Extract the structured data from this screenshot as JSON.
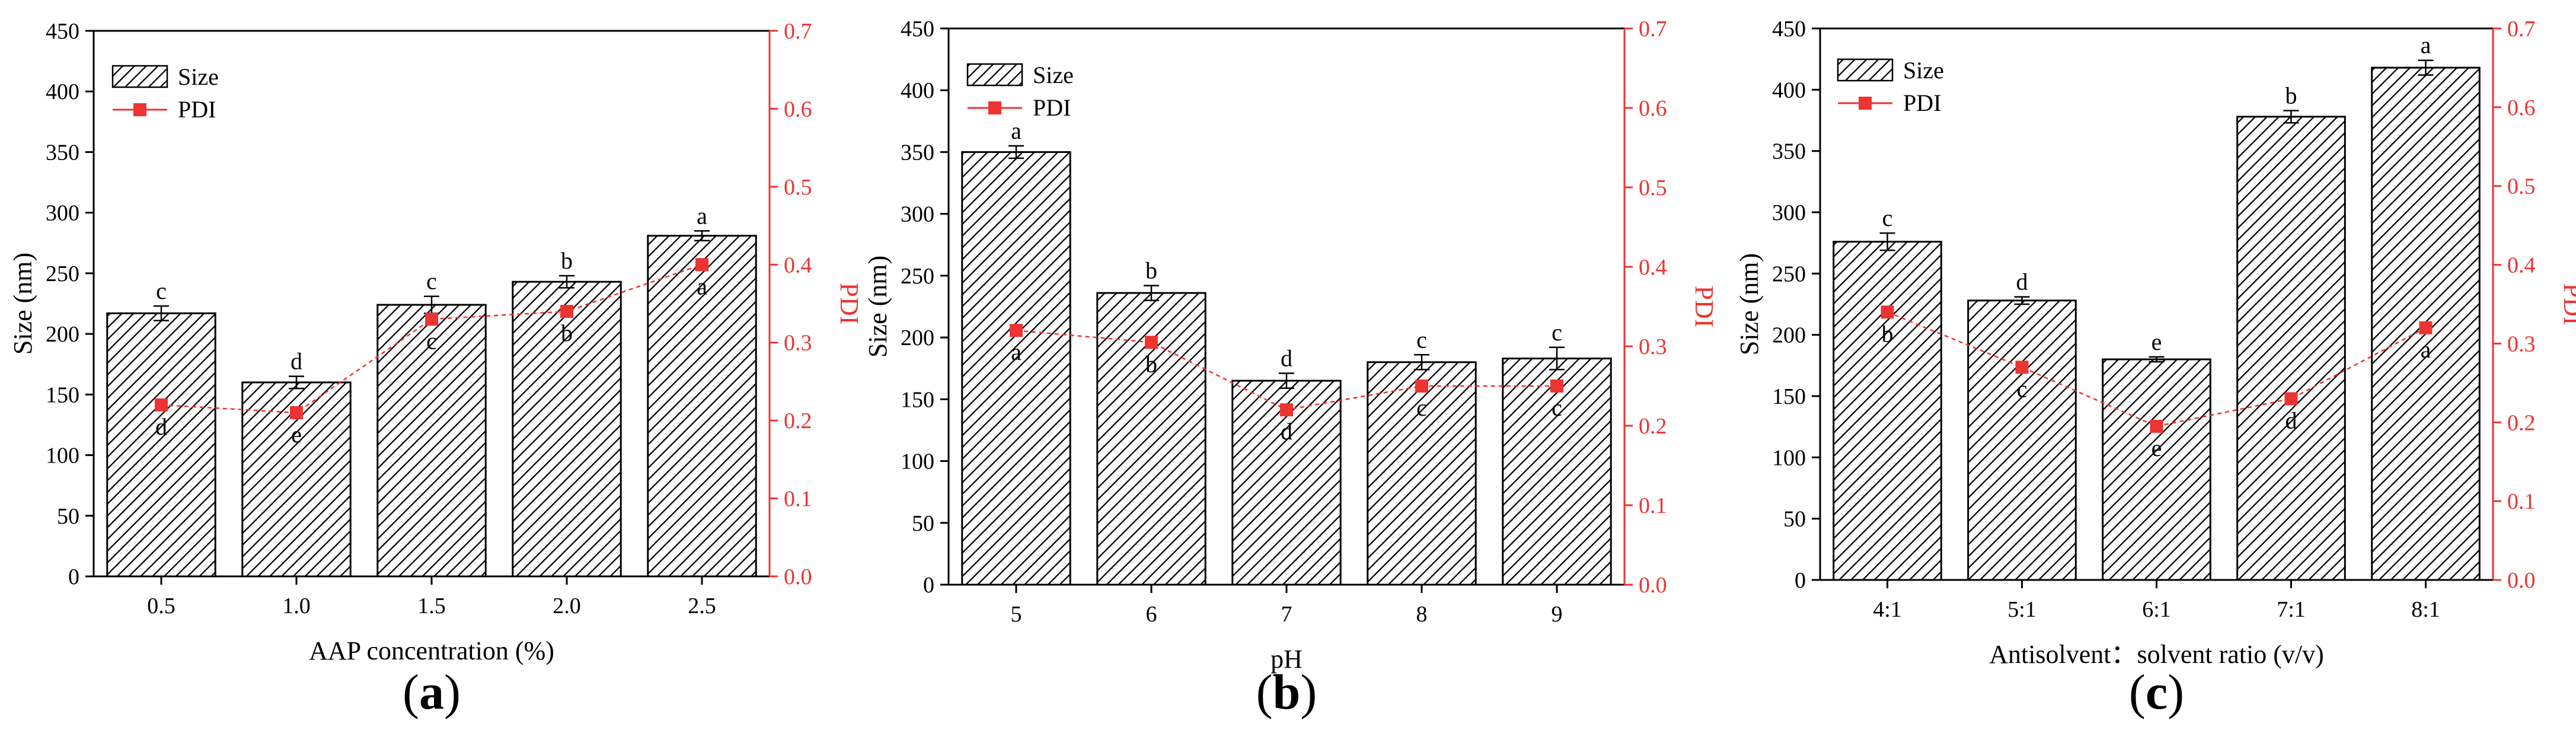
{
  "colors": {
    "axis": "#000000",
    "pdi": "#ee3333",
    "bar_fill": "#ffffff",
    "hatch": "#000000"
  },
  "chart_data": [
    {
      "type": "bar",
      "panel_label": "a",
      "xlabel": "AAP concentration (%)",
      "ylabel": "Size (nm)",
      "y2label": "PDI",
      "ylim": [
        0,
        450
      ],
      "y2lim": [
        0,
        0.7
      ],
      "yticks": [
        "0",
        "50",
        "100",
        "150",
        "200",
        "250",
        "300",
        "350",
        "400",
        "450"
      ],
      "y2ticks": [
        "0.0",
        "0.1",
        "0.2",
        "0.3",
        "0.4",
        "0.5",
        "0.6",
        "0.7"
      ],
      "categories": [
        "0.5",
        "1.0",
        "1.5",
        "2.0",
        "2.5"
      ],
      "legend": {
        "position": "top-left",
        "entries": [
          "Size",
          "PDI"
        ]
      },
      "series": [
        {
          "name": "Size",
          "kind": "bar",
          "values": [
            217,
            160,
            224,
            243,
            281
          ],
          "errors": [
            6,
            5,
            7,
            5,
            4
          ],
          "letters": [
            "c",
            "d",
            "c",
            "b",
            "a"
          ]
        },
        {
          "name": "PDI",
          "kind": "line",
          "values": [
            0.22,
            0.21,
            0.33,
            0.34,
            0.4
          ],
          "letters": [
            "d",
            "e",
            "c",
            "b",
            "a"
          ]
        }
      ]
    },
    {
      "type": "bar",
      "panel_label": "b",
      "xlabel": "pH",
      "ylabel": "Size (nm)",
      "y2label": "PDI",
      "ylim": [
        0,
        450
      ],
      "y2lim": [
        0,
        0.7
      ],
      "yticks": [
        "0",
        "50",
        "100",
        "150",
        "200",
        "250",
        "300",
        "350",
        "400",
        "450"
      ],
      "y2ticks": [
        "0.0",
        "0.1",
        "0.2",
        "0.3",
        "0.4",
        "0.5",
        "0.6",
        "0.7"
      ],
      "categories": [
        "5",
        "6",
        "7",
        "8",
        "9"
      ],
      "legend": {
        "position": "top-left",
        "entries": [
          "Size",
          "PDI"
        ]
      },
      "series": [
        {
          "name": "Size",
          "kind": "bar",
          "values": [
            350,
            236,
            165,
            180,
            183
          ],
          "errors": [
            5,
            6,
            6,
            6,
            9
          ],
          "letters": [
            "a",
            "b",
            "d",
            "c",
            "c"
          ]
        },
        {
          "name": "PDI",
          "kind": "line",
          "values": [
            0.32,
            0.305,
            0.22,
            0.25,
            0.25
          ],
          "letters": [
            "a",
            "b",
            "d",
            "c",
            "c"
          ]
        }
      ]
    },
    {
      "type": "bar",
      "panel_label": "c",
      "xlabel": "Antisolvent：solvent ratio (v/v)",
      "ylabel": "Size (nm)",
      "y2label": "PDI",
      "ylim": [
        0,
        450
      ],
      "y2lim": [
        0,
        0.7
      ],
      "yticks": [
        "0",
        "50",
        "100",
        "150",
        "200",
        "250",
        "300",
        "350",
        "400",
        "450"
      ],
      "y2ticks": [
        "0.0",
        "0.1",
        "0.2",
        "0.3",
        "0.4",
        "0.5",
        "0.6",
        "0.7"
      ],
      "categories": [
        "4:1",
        "5:1",
        "6:1",
        "7:1",
        "8:1"
      ],
      "legend": {
        "position": "top-left",
        "entries": [
          "Size",
          "PDI"
        ]
      },
      "series": [
        {
          "name": "Size",
          "kind": "bar",
          "values": [
            276,
            228,
            180,
            378,
            418
          ],
          "errors": [
            7,
            3,
            2,
            5,
            6
          ],
          "letters": [
            "c",
            "d",
            "e",
            "b",
            "a"
          ]
        },
        {
          "name": "PDI",
          "kind": "line",
          "values": [
            0.34,
            0.27,
            0.195,
            0.23,
            0.32
          ],
          "letters": [
            "b",
            "c",
            "e",
            "d",
            "a"
          ]
        }
      ]
    }
  ]
}
